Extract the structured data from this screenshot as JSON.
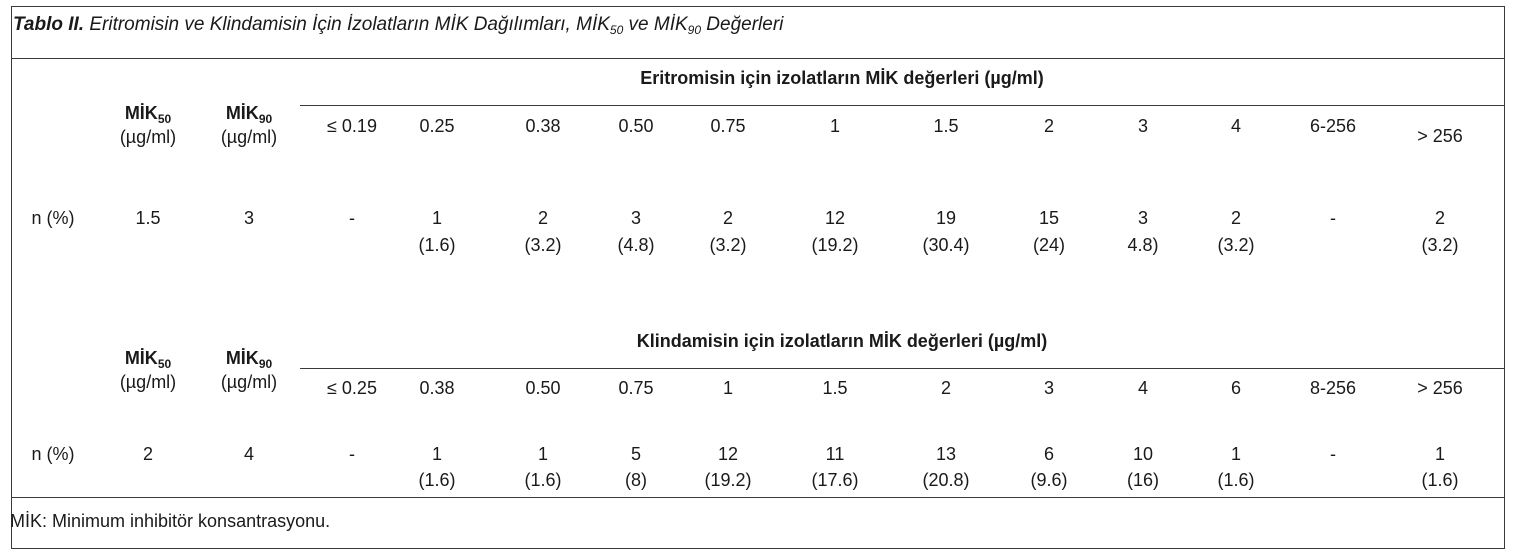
{
  "caption": {
    "label": "Tablo II.",
    "text_a": "Eritromisin ve Klindamisin İçin İzolatların MİK Dağılımları, MİK",
    "sub_a": "50",
    "text_b": " ve MİK",
    "sub_b": "90",
    "text_c": " Değerleri"
  },
  "headers": {
    "mik": "MİK",
    "sub50": "50",
    "sub90": "90",
    "unit": "(µg/ml)",
    "n_label": "n (%)"
  },
  "erythro": {
    "group_header": "Eritromisin için izolatların MİK değerleri (µg/ml)",
    "mic50": "1.5",
    "mic90": "3",
    "concentrations": [
      "≤ 0.19",
      "0.25",
      "0.38",
      "0.50",
      "0.75",
      "1",
      "1.5",
      "2",
      "3",
      "4",
      "6-256",
      "> 256"
    ],
    "counts": [
      "-",
      "1",
      "2",
      "3",
      "2",
      "12",
      "19",
      "15",
      "3",
      "2",
      "-",
      "2"
    ],
    "percents": [
      "",
      "(1.6)",
      "(3.2)",
      "(4.8)",
      "(3.2)",
      "(19.2)",
      "(30.4)",
      "(24)",
      "4.8)",
      "(3.2)",
      "",
      "(3.2)"
    ]
  },
  "clinda": {
    "group_header": "Klindamisin için izolatların MİK değerleri (µg/ml)",
    "mic50": "2",
    "mic90": "4",
    "concentrations": [
      "≤ 0.25",
      "0.38",
      "0.50",
      "0.75",
      "1",
      "1.5",
      "2",
      "3",
      "4",
      "6",
      "8-256",
      "> 256"
    ],
    "counts": [
      "-",
      "1",
      "1",
      "5",
      "12",
      "11",
      "13",
      "6",
      "10",
      "1",
      "-",
      "1"
    ],
    "percents": [
      "",
      "(1.6)",
      "(1.6)",
      "(8)",
      "(19.2)",
      "(17.6)",
      "(20.8)",
      "(9.6)",
      "(16)",
      "(1.6)",
      "",
      "(1.6)"
    ]
  },
  "footnote": "MİK: Minimum inhibitör konsantrasyonu."
}
